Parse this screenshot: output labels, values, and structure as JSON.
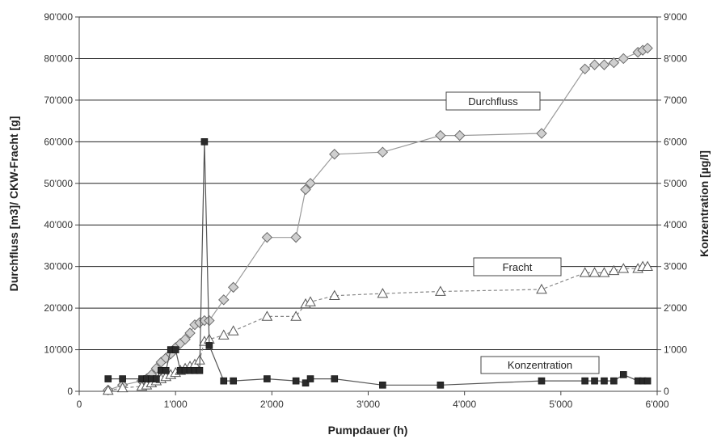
{
  "chart_data": {
    "type": "line",
    "xlabel": "Pumpdauer (h)",
    "ylabel_left": "Durchfluss [m3]/ CKW-Fracht [g]",
    "ylabel_right": "Konzentration [µg/l]",
    "xlim": [
      0,
      6000
    ],
    "ylim_left": [
      0,
      90000
    ],
    "ylim_right": [
      0,
      9000
    ],
    "x_ticks": [
      0,
      1000,
      2000,
      3000,
      4000,
      5000,
      6000
    ],
    "x_tick_labels": [
      "0",
      "1'000",
      "2'000",
      "3'000",
      "4'000",
      "5'000",
      "6'000"
    ],
    "y_left_ticks": [
      0,
      10000,
      20000,
      30000,
      40000,
      50000,
      60000,
      70000,
      80000,
      90000
    ],
    "y_left_tick_labels": [
      "0",
      "10'000",
      "20'000",
      "30'000",
      "40'000",
      "50'000",
      "60'000",
      "70'000",
      "80'000",
      "90'000"
    ],
    "y_right_ticks": [
      0,
      1000,
      2000,
      3000,
      4000,
      5000,
      6000,
      7000,
      8000,
      9000
    ],
    "y_right_tick_labels": [
      "0",
      "1'000",
      "2'000",
      "3'000",
      "4'000",
      "5'000",
      "6'000",
      "7'000",
      "8'000",
      "9'000"
    ],
    "grid": "horizontal",
    "colors": {
      "durchfluss_marker": "#cfcfcf",
      "durchfluss_line": "#9a9a9a",
      "fracht_marker": "#ffffff",
      "fracht_line": "#888888",
      "konzentration_marker": "#2a2a2a",
      "konzentration_line": "#555555",
      "grid": "#222222"
    },
    "series": [
      {
        "name": "Durchfluss",
        "axis": "left",
        "marker": "diamond",
        "line_style": "solid",
        "x": [
          300,
          450,
          650,
          700,
          750,
          800,
          850,
          900,
          950,
          1000,
          1050,
          1100,
          1150,
          1200,
          1250,
          1300,
          1350,
          1500,
          1600,
          1950,
          2250,
          2350,
          2400,
          2650,
          3150,
          3750,
          3950,
          4800,
          5250,
          5350,
          5450,
          5550,
          5650,
          5800,
          5850,
          5900
        ],
        "y": [
          300,
          1500,
          2500,
          3000,
          4000,
          5500,
          7000,
          8000,
          9000,
          10500,
          11500,
          12500,
          14000,
          16000,
          16500,
          17000,
          17000,
          22000,
          25000,
          37000,
          37000,
          48500,
          50000,
          57000,
          57500,
          61500,
          61500,
          62000,
          77500,
          78500,
          78500,
          79000,
          80000,
          81500,
          82000,
          82500
        ]
      },
      {
        "name": "Fracht",
        "axis": "left",
        "marker": "triangle",
        "line_style": "dashed",
        "x": [
          300,
          450,
          650,
          700,
          750,
          800,
          850,
          900,
          950,
          1000,
          1050,
          1100,
          1150,
          1200,
          1250,
          1300,
          1350,
          1500,
          1600,
          1950,
          2250,
          2350,
          2400,
          2650,
          3150,
          3750,
          4800,
          5250,
          5350,
          5450,
          5550,
          5650,
          5800,
          5850,
          5900
        ],
        "y": [
          200,
          800,
          1200,
          1500,
          2000,
          2500,
          3000,
          3500,
          4000,
          4500,
          5000,
          5500,
          6000,
          6500,
          7500,
          12000,
          12500,
          13500,
          14500,
          18000,
          18000,
          21000,
          21500,
          23000,
          23500,
          24000,
          24500,
          28500,
          28500,
          28500,
          29000,
          29500,
          29500,
          30000,
          30000
        ]
      },
      {
        "name": "Konzentration",
        "axis": "right",
        "marker": "square",
        "line_style": "solid",
        "x": [
          300,
          450,
          650,
          700,
          750,
          800,
          850,
          900,
          950,
          1000,
          1050,
          1100,
          1150,
          1200,
          1250,
          1300,
          1350,
          1500,
          1600,
          1950,
          2250,
          2350,
          2400,
          2650,
          3150,
          3750,
          4800,
          5250,
          5350,
          5450,
          5550,
          5650,
          5800,
          5850,
          5900
        ],
        "y": [
          300,
          300,
          300,
          300,
          300,
          300,
          500,
          500,
          1000,
          1000,
          500,
          500,
          500,
          500,
          500,
          6000,
          1100,
          250,
          250,
          300,
          250,
          200,
          300,
          300,
          150,
          150,
          250,
          250,
          250,
          250,
          250,
          400,
          250,
          250,
          250
        ]
      }
    ]
  },
  "callouts": {
    "durchfluss": "Durchfluss",
    "fracht": "Fracht",
    "konzentration": "Konzentration"
  }
}
